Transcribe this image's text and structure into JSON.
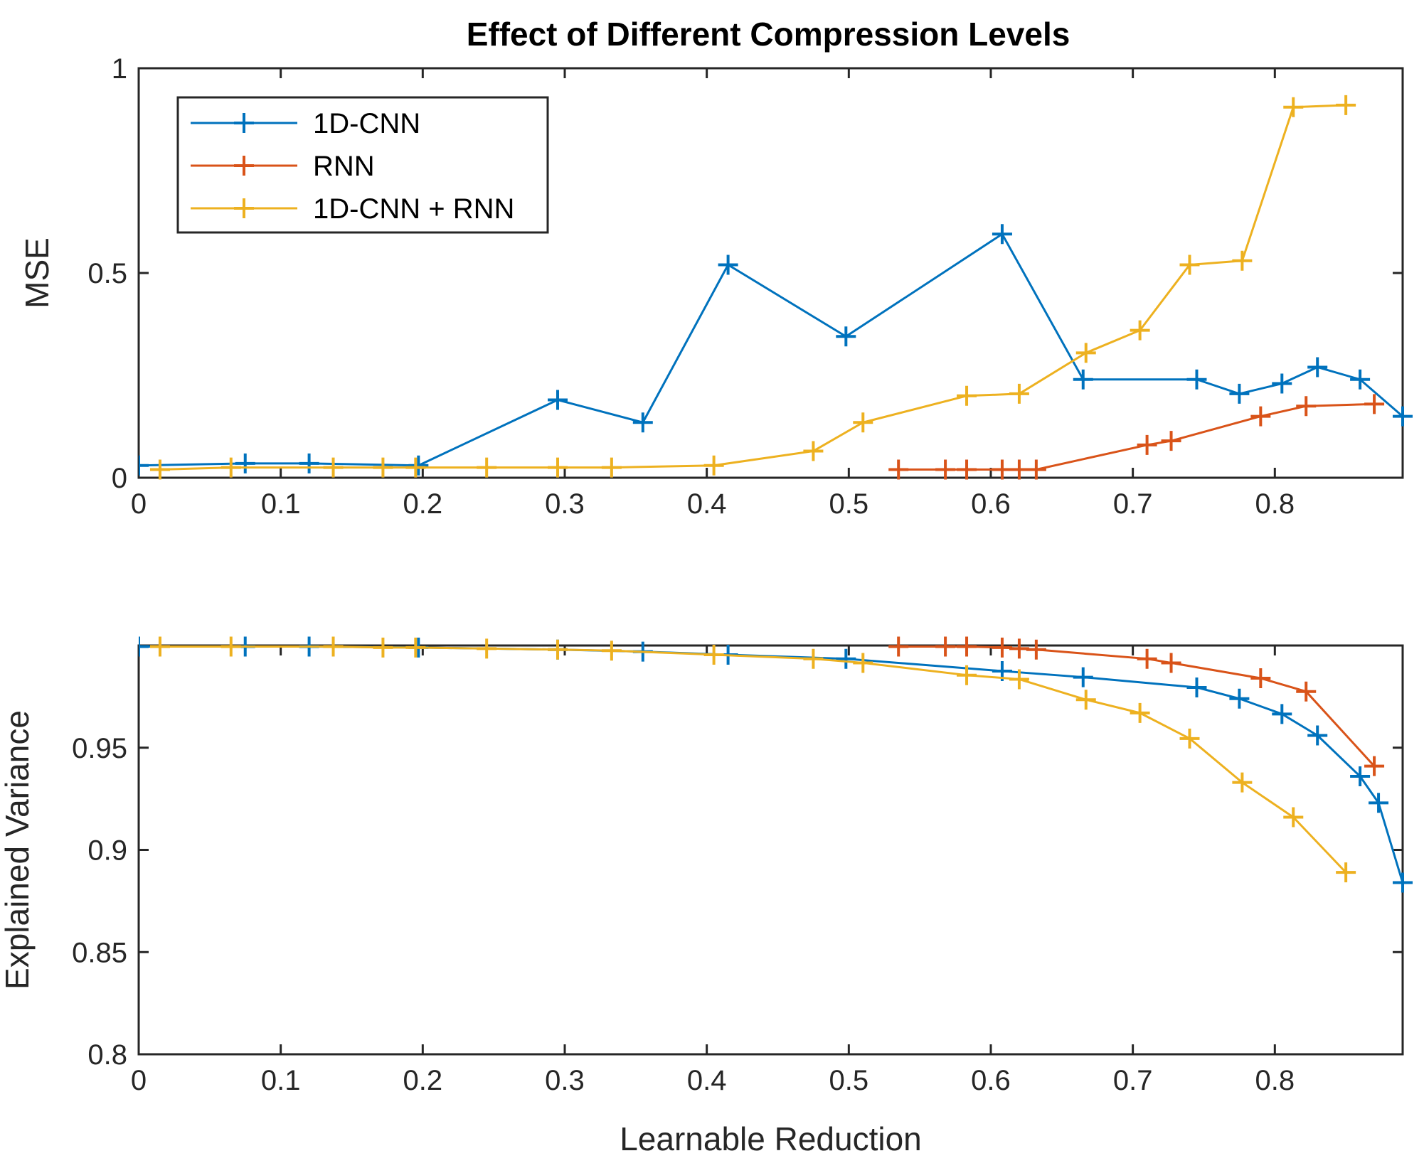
{
  "chart_data": [
    {
      "type": "line",
      "title": "Effect of Different Compression Levels",
      "xlabel": "",
      "ylabel": "MSE",
      "xlim": [
        0,
        0.89
      ],
      "ylim": [
        0,
        1
      ],
      "xticks": [
        0,
        0.1,
        0.2,
        0.3,
        0.4,
        0.5,
        0.6,
        0.7,
        0.8
      ],
      "xtick_labels": [
        "0",
        "0.1",
        "0.2",
        "0.3",
        "0.4",
        "0.5",
        "0.6",
        "0.7",
        "0.8"
      ],
      "yticks": [
        0,
        0.5,
        1
      ],
      "ytick_labels": [
        "0",
        "0.5",
        "1"
      ],
      "grid": false,
      "legend_position": "top-left",
      "series": [
        {
          "name": "1D-CNN",
          "color": "#0072BD",
          "x": [
            0,
            0.075,
            0.12,
            0.197,
            0.295,
            0.355,
            0.415,
            0.498,
            0.608,
            0.665,
            0.745,
            0.775,
            0.805,
            0.83,
            0.86,
            0.89
          ],
          "y": [
            0.03,
            0.035,
            0.035,
            0.03,
            0.19,
            0.135,
            0.52,
            0.345,
            0.595,
            0.24,
            0.24,
            0.205,
            0.23,
            0.27,
            0.24,
            0.15
          ]
        },
        {
          "name": "RNN",
          "color": "#D95319",
          "x": [
            0.535,
            0.568,
            0.583,
            0.608,
            0.62,
            0.632,
            0.71,
            0.727,
            0.79,
            0.822,
            0.87
          ],
          "y": [
            0.02,
            0.02,
            0.02,
            0.02,
            0.02,
            0.02,
            0.08,
            0.09,
            0.15,
            0.175,
            0.18
          ]
        },
        {
          "name": "1D-CNN + RNN",
          "color": "#EDB120",
          "x": [
            0.015,
            0.065,
            0.137,
            0.172,
            0.195,
            0.245,
            0.295,
            0.333,
            0.405,
            0.475,
            0.51,
            0.583,
            0.62,
            0.667,
            0.705,
            0.74,
            0.777,
            0.813,
            0.85
          ],
          "y": [
            0.02,
            0.025,
            0.025,
            0.025,
            0.025,
            0.025,
            0.025,
            0.025,
            0.03,
            0.065,
            0.135,
            0.2,
            0.205,
            0.305,
            0.36,
            0.52,
            0.53,
            0.905,
            0.91
          ]
        }
      ]
    },
    {
      "type": "line",
      "title": "",
      "xlabel": "Learnable Reduction",
      "ylabel": "Explained Variance",
      "xlim": [
        0,
        0.89
      ],
      "ylim": [
        0.8,
        1.0
      ],
      "xticks": [
        0,
        0.1,
        0.2,
        0.3,
        0.4,
        0.5,
        0.6,
        0.7,
        0.8
      ],
      "xtick_labels": [
        "0",
        "0.1",
        "0.2",
        "0.3",
        "0.4",
        "0.5",
        "0.6",
        "0.7",
        "0.8"
      ],
      "yticks": [
        0.8,
        0.85,
        0.9,
        0.95
      ],
      "ytick_labels": [
        "0.8",
        "0.85",
        "0.9",
        "0.95"
      ],
      "grid": false,
      "series": [
        {
          "name": "1D-CNN",
          "color": "#0072BD",
          "x": [
            0,
            0.075,
            0.12,
            0.197,
            0.295,
            0.355,
            0.415,
            0.498,
            0.608,
            0.665,
            0.745,
            0.775,
            0.805,
            0.83,
            0.86,
            0.873,
            0.89
          ],
          "y": [
            0.9995,
            0.9995,
            0.9995,
            0.999,
            0.998,
            0.997,
            0.9955,
            0.9935,
            0.9875,
            0.9845,
            0.9795,
            0.974,
            0.9665,
            0.956,
            0.936,
            0.923,
            0.884
          ]
        },
        {
          "name": "RNN",
          "color": "#D95319",
          "x": [
            0.535,
            0.568,
            0.583,
            0.608,
            0.62,
            0.632,
            0.71,
            0.727,
            0.79,
            0.822,
            0.87
          ],
          "y": [
            0.9995,
            0.9995,
            0.9995,
            0.999,
            0.9985,
            0.998,
            0.9935,
            0.9915,
            0.984,
            0.9775,
            0.941
          ]
        },
        {
          "name": "1D-CNN + RNN",
          "color": "#EDB120",
          "x": [
            0.015,
            0.065,
            0.137,
            0.172,
            0.195,
            0.245,
            0.295,
            0.333,
            0.405,
            0.475,
            0.51,
            0.583,
            0.62,
            0.667,
            0.705,
            0.74,
            0.777,
            0.813,
            0.85
          ],
          "y": [
            0.9995,
            0.9995,
            0.9995,
            0.999,
            0.999,
            0.9985,
            0.998,
            0.9975,
            0.9955,
            0.9935,
            0.9915,
            0.9855,
            0.9835,
            0.9735,
            0.967,
            0.9545,
            0.933,
            0.916,
            0.889
          ]
        }
      ]
    }
  ]
}
